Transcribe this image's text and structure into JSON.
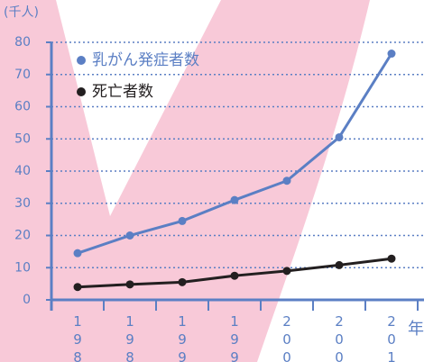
{
  "chart_data": {
    "type": "line",
    "y_label": "(千人)",
    "x_label": "年",
    "categories": [
      "198",
      "198",
      "199",
      "199",
      "200",
      "200",
      "201"
    ],
    "series": [
      {
        "name": "乳がん発症者数",
        "color": "#5b7fc4",
        "values": [
          14.5,
          20,
          24.5,
          31,
          37,
          50.5,
          76.5
        ]
      },
      {
        "name": "死亡者数",
        "color": "#231f20",
        "values": [
          4,
          4.8,
          5.5,
          7.5,
          9,
          10.8,
          12.8
        ]
      }
    ],
    "ylim": [
      0,
      80
    ],
    "yticks": [
      0,
      10,
      20,
      30,
      40,
      50,
      60,
      70,
      80
    ],
    "grid": true
  }
}
